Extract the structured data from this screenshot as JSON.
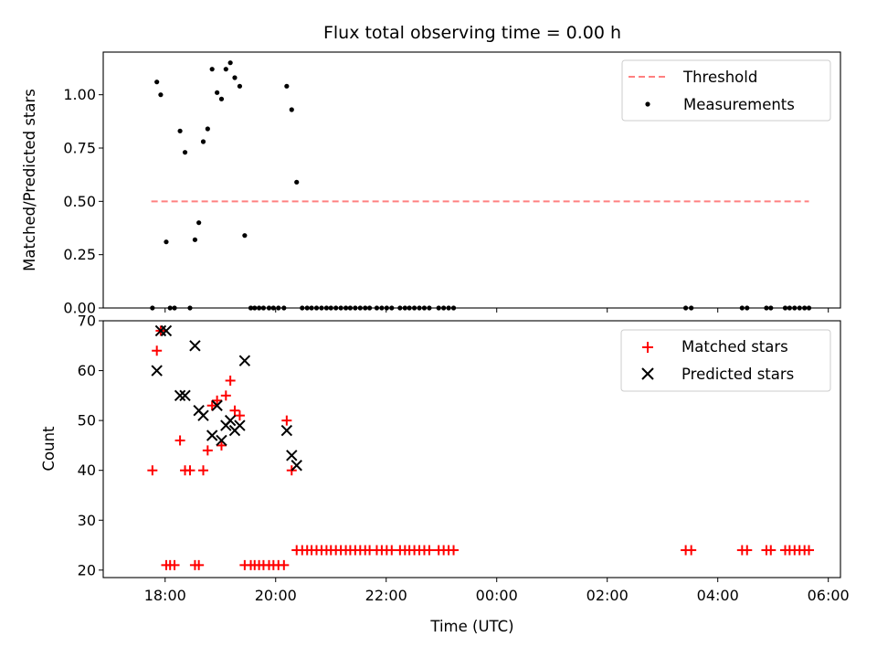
{
  "chart_data": {
    "title": "Flux total observing time = 0.00 h",
    "xlabel": "Time (UTC)",
    "x_unit": "hours",
    "x_ticks": [
      {
        "value": 18,
        "label": "18:00"
      },
      {
        "value": 20,
        "label": "20:00"
      },
      {
        "value": 22,
        "label": "22:00"
      },
      {
        "value": 24,
        "label": "00:00"
      },
      {
        "value": 26,
        "label": "02:00"
      },
      {
        "value": 28,
        "label": "04:00"
      },
      {
        "value": 30,
        "label": "06:00"
      }
    ],
    "xlim": [
      16.88,
      30.22
    ],
    "panels": [
      {
        "type": "scatter",
        "ylabel": "Matched/Predicted stars",
        "ylim": [
          0,
          1.2
        ],
        "y_ticks": [
          "0.00",
          "0.25",
          "0.50",
          "0.75",
          "1.00"
        ],
        "y_tick_values": [
          0,
          0.25,
          0.5,
          0.75,
          1.0
        ],
        "legend_position": "upper right",
        "series": [
          {
            "name": "Threshold",
            "kind": "line",
            "color": "#ff8080",
            "dashed": true,
            "points": [
              [
                17.75,
                0.5
              ],
              [
                29.65,
                0.5
              ]
            ]
          },
          {
            "name": "Measurements",
            "kind": "dot",
            "color": "#000000",
            "points": [
              [
                17.77,
                0
              ],
              [
                17.85,
                1.06
              ],
              [
                17.92,
                1.0
              ],
              [
                18.02,
                0.31
              ],
              [
                18.09,
                0
              ],
              [
                18.17,
                0
              ],
              [
                18.27,
                0.83
              ],
              [
                18.36,
                0.73
              ],
              [
                18.45,
                0
              ],
              [
                18.54,
                0.32
              ],
              [
                18.61,
                0.4
              ],
              [
                18.69,
                0.78
              ],
              [
                18.77,
                0.84
              ],
              [
                18.85,
                1.12
              ],
              [
                18.94,
                1.01
              ],
              [
                19.02,
                0.98
              ],
              [
                19.1,
                1.12
              ],
              [
                19.18,
                1.15
              ],
              [
                19.26,
                1.08
              ],
              [
                19.35,
                1.04
              ],
              [
                19.44,
                0.34
              ],
              [
                19.55,
                0
              ],
              [
                19.62,
                0
              ],
              [
                19.7,
                0
              ],
              [
                19.78,
                0
              ],
              [
                19.88,
                0
              ],
              [
                19.96,
                0
              ],
              [
                20.05,
                0
              ],
              [
                20.15,
                0
              ],
              [
                20.2,
                1.04
              ],
              [
                20.29,
                0.93
              ],
              [
                20.38,
                0.59
              ],
              [
                20.48,
                0
              ],
              [
                20.57,
                0
              ],
              [
                20.65,
                0
              ],
              [
                20.74,
                0
              ],
              [
                20.83,
                0
              ],
              [
                20.92,
                0
              ],
              [
                21.0,
                0
              ],
              [
                21.09,
                0
              ],
              [
                21.18,
                0
              ],
              [
                21.27,
                0
              ],
              [
                21.35,
                0
              ],
              [
                21.44,
                0
              ],
              [
                21.53,
                0
              ],
              [
                21.62,
                0
              ],
              [
                21.7,
                0
              ],
              [
                21.83,
                0
              ],
              [
                21.92,
                0
              ],
              [
                22.01,
                0
              ],
              [
                22.1,
                0
              ],
              [
                22.25,
                0
              ],
              [
                22.34,
                0
              ],
              [
                22.42,
                0
              ],
              [
                22.51,
                0
              ],
              [
                22.6,
                0
              ],
              [
                22.69,
                0
              ],
              [
                22.78,
                0
              ],
              [
                22.95,
                0
              ],
              [
                23.04,
                0
              ],
              [
                23.13,
                0
              ],
              [
                23.22,
                0
              ],
              [
                27.42,
                0
              ],
              [
                27.52,
                0
              ],
              [
                28.44,
                0
              ],
              [
                28.53,
                0
              ],
              [
                28.88,
                0
              ],
              [
                28.96,
                0
              ],
              [
                29.22,
                0
              ],
              [
                29.3,
                0
              ],
              [
                29.39,
                0
              ],
              [
                29.48,
                0
              ],
              [
                29.57,
                0
              ],
              [
                29.65,
                0
              ]
            ]
          }
        ]
      },
      {
        "type": "scatter",
        "ylabel": "Count",
        "ylim": [
          18.5,
          70
        ],
        "y_ticks": [
          "20",
          "30",
          "40",
          "50",
          "60",
          "70"
        ],
        "y_tick_values": [
          20,
          30,
          40,
          50,
          60,
          70
        ],
        "legend_position": "upper right",
        "series": [
          {
            "name": "Matched stars",
            "kind": "plus",
            "color": "#ff0000",
            "points": [
              [
                17.77,
                40
              ],
              [
                17.85,
                64
              ],
              [
                17.92,
                68
              ],
              [
                18.02,
                21
              ],
              [
                18.09,
                21
              ],
              [
                18.17,
                21
              ],
              [
                18.27,
                46
              ],
              [
                18.36,
                40
              ],
              [
                18.45,
                40
              ],
              [
                18.54,
                21
              ],
              [
                18.61,
                21
              ],
              [
                18.69,
                40
              ],
              [
                18.77,
                44
              ],
              [
                18.85,
                53
              ],
              [
                18.94,
                54
              ],
              [
                19.02,
                45
              ],
              [
                19.1,
                55
              ],
              [
                19.18,
                58
              ],
              [
                19.26,
                52
              ],
              [
                19.35,
                51
              ],
              [
                19.44,
                21
              ],
              [
                19.55,
                21
              ],
              [
                19.62,
                21
              ],
              [
                19.7,
                21
              ],
              [
                19.78,
                21
              ],
              [
                19.88,
                21
              ],
              [
                19.96,
                21
              ],
              [
                20.05,
                21
              ],
              [
                20.15,
                21
              ],
              [
                20.2,
                50
              ],
              [
                20.29,
                40
              ],
              [
                20.38,
                24
              ],
              [
                20.48,
                24
              ],
              [
                20.57,
                24
              ],
              [
                20.65,
                24
              ],
              [
                20.74,
                24
              ],
              [
                20.83,
                24
              ],
              [
                20.92,
                24
              ],
              [
                21.0,
                24
              ],
              [
                21.09,
                24
              ],
              [
                21.18,
                24
              ],
              [
                21.27,
                24
              ],
              [
                21.35,
                24
              ],
              [
                21.44,
                24
              ],
              [
                21.53,
                24
              ],
              [
                21.62,
                24
              ],
              [
                21.7,
                24
              ],
              [
                21.83,
                24
              ],
              [
                21.92,
                24
              ],
              [
                22.01,
                24
              ],
              [
                22.1,
                24
              ],
              [
                22.25,
                24
              ],
              [
                22.34,
                24
              ],
              [
                22.42,
                24
              ],
              [
                22.51,
                24
              ],
              [
                22.6,
                24
              ],
              [
                22.69,
                24
              ],
              [
                22.78,
                24
              ],
              [
                22.95,
                24
              ],
              [
                23.04,
                24
              ],
              [
                23.13,
                24
              ],
              [
                23.22,
                24
              ],
              [
                27.42,
                24
              ],
              [
                27.52,
                24
              ],
              [
                28.44,
                24
              ],
              [
                28.53,
                24
              ],
              [
                28.88,
                24
              ],
              [
                28.96,
                24
              ],
              [
                29.22,
                24
              ],
              [
                29.3,
                24
              ],
              [
                29.39,
                24
              ],
              [
                29.48,
                24
              ],
              [
                29.57,
                24
              ],
              [
                29.65,
                24
              ]
            ]
          },
          {
            "name": "Predicted stars",
            "kind": "x",
            "color": "#000000",
            "points": [
              [
                17.85,
                60
              ],
              [
                17.92,
                68
              ],
              [
                18.02,
                68
              ],
              [
                18.27,
                55
              ],
              [
                18.36,
                55
              ],
              [
                18.54,
                65
              ],
              [
                18.61,
                52
              ],
              [
                18.69,
                51
              ],
              [
                18.85,
                47
              ],
              [
                18.94,
                53
              ],
              [
                19.02,
                46
              ],
              [
                19.1,
                49
              ],
              [
                19.18,
                50
              ],
              [
                19.26,
                48
              ],
              [
                19.35,
                49
              ],
              [
                19.44,
                62
              ],
              [
                20.2,
                48
              ],
              [
                20.29,
                43
              ],
              [
                20.38,
                41
              ]
            ]
          }
        ]
      }
    ]
  }
}
